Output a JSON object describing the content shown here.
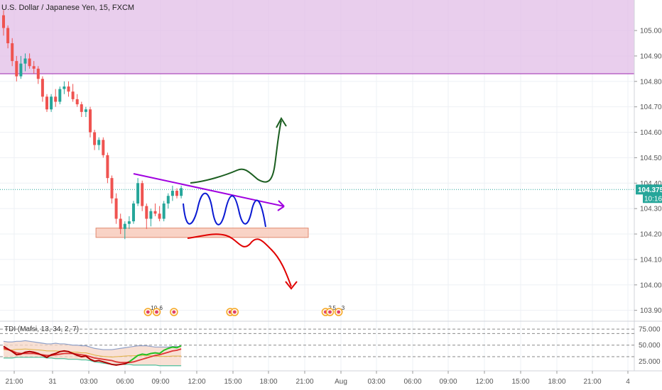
{
  "chart_data": {
    "type": "candlestick",
    "title": "U.S. Dollar / Japanese Yen, 15, FXCM",
    "y_ticks": [
      "105.000",
      "104.900",
      "104.800",
      "104.700",
      "104.600",
      "104.500",
      "104.400",
      "104.300",
      "104.200",
      "104.100",
      "104.000",
      "103.900"
    ],
    "y_tick_values": [
      105.0,
      104.9,
      104.8,
      104.7,
      104.6,
      104.5,
      104.4,
      104.3,
      104.2,
      104.1,
      104.0,
      103.9
    ],
    "ylim": [
      103.86,
      105.12
    ],
    "x_ticks": [
      "21:00",
      "31",
      "03:00",
      "06:00",
      "09:00",
      "12:00",
      "15:00",
      "18:00",
      "21:00",
      "Aug",
      "03:00",
      "06:00",
      "09:00",
      "12:00",
      "15:00",
      "18:00",
      "21:00",
      "4"
    ],
    "price_tag": {
      "label": "104.375",
      "value": 104.375,
      "color": "#26a69a"
    },
    "countdown_tag": {
      "label": "10:16"
    },
    "supply_zone": {
      "from": 104.83,
      "to": 105.12,
      "color": "#e1bee7"
    },
    "support_zone": {
      "from": 104.195,
      "to": 104.215,
      "color": "#f8c8b8"
    },
    "candles": [
      {
        "o": 105.06,
        "h": 105.08,
        "l": 104.98,
        "c": 105.01
      },
      {
        "o": 105.01,
        "h": 105.02,
        "l": 104.93,
        "c": 104.95
      },
      {
        "o": 104.95,
        "h": 104.97,
        "l": 104.86,
        "c": 104.88
      },
      {
        "o": 104.88,
        "h": 104.9,
        "l": 104.8,
        "c": 104.82
      },
      {
        "o": 104.82,
        "h": 104.9,
        "l": 104.81,
        "c": 104.87
      },
      {
        "o": 104.87,
        "h": 104.91,
        "l": 104.84,
        "c": 104.89
      },
      {
        "o": 104.89,
        "h": 104.91,
        "l": 104.85,
        "c": 104.86
      },
      {
        "o": 104.86,
        "h": 104.88,
        "l": 104.83,
        "c": 104.85
      },
      {
        "o": 104.85,
        "h": 104.86,
        "l": 104.79,
        "c": 104.81
      },
      {
        "o": 104.81,
        "h": 104.82,
        "l": 104.72,
        "c": 104.74
      },
      {
        "o": 104.74,
        "h": 104.75,
        "l": 104.68,
        "c": 104.69
      },
      {
        "o": 104.69,
        "h": 104.75,
        "l": 104.68,
        "c": 104.74
      },
      {
        "o": 104.74,
        "h": 104.77,
        "l": 104.7,
        "c": 104.72
      },
      {
        "o": 104.72,
        "h": 104.78,
        "l": 104.71,
        "c": 104.77
      },
      {
        "o": 104.77,
        "h": 104.8,
        "l": 104.75,
        "c": 104.78
      },
      {
        "o": 104.78,
        "h": 104.8,
        "l": 104.74,
        "c": 104.76
      },
      {
        "o": 104.76,
        "h": 104.79,
        "l": 104.72,
        "c": 104.73
      },
      {
        "o": 104.73,
        "h": 104.75,
        "l": 104.7,
        "c": 104.71
      },
      {
        "o": 104.71,
        "h": 104.72,
        "l": 104.66,
        "c": 104.68
      },
      {
        "o": 104.68,
        "h": 104.7,
        "l": 104.66,
        "c": 104.69
      },
      {
        "o": 104.69,
        "h": 104.7,
        "l": 104.58,
        "c": 104.6
      },
      {
        "o": 104.6,
        "h": 104.61,
        "l": 104.53,
        "c": 104.55
      },
      {
        "o": 104.55,
        "h": 104.58,
        "l": 104.53,
        "c": 104.57
      },
      {
        "o": 104.57,
        "h": 104.58,
        "l": 104.5,
        "c": 104.51
      },
      {
        "o": 104.51,
        "h": 104.52,
        "l": 104.4,
        "c": 104.42
      },
      {
        "o": 104.42,
        "h": 104.43,
        "l": 104.32,
        "c": 104.34
      },
      {
        "o": 104.34,
        "h": 104.36,
        "l": 104.24,
        "c": 104.26
      },
      {
        "o": 104.26,
        "h": 104.28,
        "l": 104.2,
        "c": 104.22
      },
      {
        "o": 104.22,
        "h": 104.25,
        "l": 104.18,
        "c": 104.24
      },
      {
        "o": 104.24,
        "h": 104.27,
        "l": 104.22,
        "c": 104.25
      },
      {
        "o": 104.25,
        "h": 104.33,
        "l": 104.24,
        "c": 104.32
      },
      {
        "o": 104.32,
        "h": 104.42,
        "l": 104.31,
        "c": 104.4
      },
      {
        "o": 104.4,
        "h": 104.41,
        "l": 104.29,
        "c": 104.31
      },
      {
        "o": 104.31,
        "h": 104.32,
        "l": 104.22,
        "c": 104.26
      },
      {
        "o": 104.26,
        "h": 104.3,
        "l": 104.23,
        "c": 104.29
      },
      {
        "o": 104.29,
        "h": 104.32,
        "l": 104.27,
        "c": 104.28
      },
      {
        "o": 104.28,
        "h": 104.31,
        "l": 104.25,
        "c": 104.26
      },
      {
        "o": 104.26,
        "h": 104.33,
        "l": 104.25,
        "c": 104.32
      },
      {
        "o": 104.32,
        "h": 104.36,
        "l": 104.3,
        "c": 104.35
      },
      {
        "o": 104.35,
        "h": 104.39,
        "l": 104.33,
        "c": 104.37
      },
      {
        "o": 104.37,
        "h": 104.38,
        "l": 104.34,
        "c": 104.35
      },
      {
        "o": 104.35,
        "h": 104.39,
        "l": 104.34,
        "c": 104.38
      }
    ],
    "indicator": {
      "label": "TDI (Mafsi, 13, 34, 2, 7)",
      "y_ticks": [
        "75.000",
        "50.000",
        "25.000"
      ],
      "y_tick_values": [
        75,
        50,
        25
      ],
      "ylim": [
        10,
        85
      ],
      "dashed_levels": [
        32,
        50,
        68,
        75
      ],
      "band_upper": [
        56,
        55,
        55,
        56,
        56,
        57,
        56,
        55,
        54,
        53,
        52,
        52,
        53,
        52,
        52,
        51,
        50,
        50,
        49,
        49,
        47,
        45,
        44,
        43,
        43,
        43,
        44,
        45,
        46,
        47,
        48,
        49,
        49,
        49,
        48,
        47,
        47,
        47,
        47,
        48,
        48,
        48
      ],
      "band_lower": [
        30,
        30,
        30,
        31,
        31,
        31,
        31,
        31,
        31,
        31,
        30,
        30,
        29,
        29,
        29,
        28,
        28,
        28,
        27,
        27,
        26,
        24,
        23,
        22,
        21,
        20,
        20,
        20,
        20,
        20,
        19,
        19,
        19,
        19,
        19,
        19,
        18,
        18,
        18,
        18,
        18,
        18
      ],
      "rsi": [
        48,
        44,
        40,
        35,
        36,
        39,
        40,
        39,
        37,
        34,
        31,
        35,
        37,
        40,
        41,
        40,
        37,
        34,
        32,
        33,
        28,
        25,
        26,
        24,
        22,
        20,
        19,
        20,
        21,
        24,
        29,
        34,
        36,
        35,
        37,
        38,
        37,
        42,
        45,
        47,
        46,
        49
      ],
      "signal": [
        45,
        43,
        41,
        38,
        37,
        37,
        37,
        37,
        36,
        35,
        34,
        34,
        35,
        36,
        37,
        37,
        37,
        36,
        35,
        34,
        32,
        30,
        29,
        28,
        27,
        26,
        24,
        23,
        23,
        23,
        24,
        26,
        28,
        30,
        32,
        34,
        35,
        37,
        39,
        41,
        42,
        44
      ]
    },
    "annotations": [
      {
        "type": "trendline",
        "from": [
          14,
          104.41
        ],
        "to": [
          56,
          104.3
        ],
        "color": "#a000e0"
      },
      {
        "type": "path-up",
        "color": "#1b5e20"
      },
      {
        "type": "wave",
        "color": "#0a1ad2"
      },
      {
        "type": "path-down",
        "color": "#e00000"
      }
    ],
    "events": [
      {
        "slot": 33,
        "count": "10"
      },
      {
        "slot": 35,
        "count": "6"
      },
      {
        "slot": 39,
        "count": ""
      },
      {
        "slot": 52,
        "count": ""
      },
      {
        "slot": 53,
        "count": ""
      },
      {
        "slot": 74,
        "count": "2"
      },
      {
        "slot": 75,
        "count": "5"
      },
      {
        "slot": 77,
        "count": "3"
      }
    ],
    "colors": {
      "up": "#26a69a",
      "down": "#ef5350",
      "grid": "#eef0f5"
    }
  }
}
